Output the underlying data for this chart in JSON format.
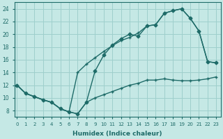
{
  "xlabel": "Humidex (Indice chaleur)",
  "background_color": "#c5e8e5",
  "grid_color": "#9ecfcc",
  "line_color": "#1e6b68",
  "xlim_min": -0.3,
  "xlim_max": 23.5,
  "ylim_min": 7,
  "ylim_max": 25,
  "yticks": [
    8,
    10,
    12,
    14,
    16,
    18,
    20,
    22,
    24
  ],
  "xticks": [
    0,
    1,
    2,
    3,
    4,
    5,
    6,
    7,
    8,
    9,
    10,
    11,
    12,
    13,
    14,
    15,
    16,
    17,
    18,
    19,
    20,
    21,
    22,
    23
  ],
  "line_A_x": [
    0,
    1,
    2,
    3,
    4,
    5,
    6,
    7,
    8,
    9,
    10,
    11,
    12,
    13,
    14,
    15,
    16,
    17,
    18,
    19,
    20,
    21,
    22,
    23
  ],
  "line_A_y": [
    12.0,
    10.7,
    10.2,
    9.7,
    9.3,
    8.3,
    7.8,
    7.5,
    9.3,
    10.0,
    10.5,
    11.0,
    11.5,
    12.0,
    12.3,
    12.8,
    12.8,
    13.0,
    12.8,
    12.7,
    12.7,
    12.8,
    13.0,
    13.3
  ],
  "line_B_x": [
    0,
    1,
    2,
    3,
    4,
    5,
    6,
    7,
    8,
    9,
    10,
    11,
    12,
    13,
    14,
    15,
    16,
    17,
    18,
    19,
    20,
    21,
    22,
    23
  ],
  "line_B_y": [
    12.0,
    10.7,
    10.2,
    9.7,
    9.3,
    8.3,
    7.8,
    7.5,
    9.3,
    14.2,
    16.7,
    18.3,
    19.3,
    20.0,
    19.7,
    21.3,
    21.5,
    23.3,
    23.7,
    24.0,
    22.5,
    20.5,
    15.7,
    15.5
  ],
  "line_C_x": [
    0,
    1,
    2,
    3,
    4,
    5,
    6,
    7,
    8,
    9,
    10,
    11,
    12,
    13,
    14,
    15,
    16,
    17,
    18,
    19,
    20,
    21,
    22,
    23
  ],
  "line_C_y": [
    12.0,
    10.7,
    10.2,
    9.7,
    9.3,
    8.3,
    7.8,
    14.0,
    15.3,
    16.3,
    17.3,
    18.2,
    19.0,
    19.5,
    20.2,
    21.3,
    21.5,
    23.3,
    23.7,
    24.0,
    22.5,
    20.5,
    15.7,
    15.5
  ]
}
